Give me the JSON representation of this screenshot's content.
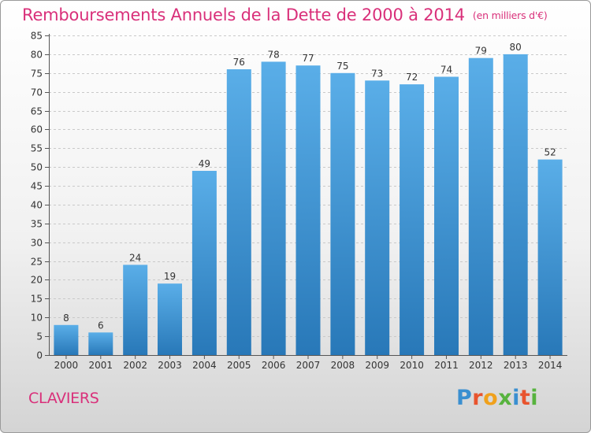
{
  "header": {
    "title": "Remboursements Annuels de la Dette de 2000 à 2014",
    "unit": "(en milliers d'€)"
  },
  "footer": {
    "city": "CLAVIERS",
    "logo_text": "Proxiti"
  },
  "colors": {
    "accent": "#d9307a",
    "bar_light": "#5aaee8",
    "bar_dark": "#2878b8",
    "logo_letters": [
      "#3a8fd0",
      "#e8542e",
      "#f0a11c",
      "#57b33e",
      "#3a8fd0",
      "#e8542e",
      "#57b33e"
    ]
  },
  "chart_data": {
    "type": "bar",
    "categories": [
      "2000",
      "2001",
      "2002",
      "2003",
      "2004",
      "2005",
      "2006",
      "2007",
      "2008",
      "2009",
      "2010",
      "2011",
      "2012",
      "2013",
      "2014"
    ],
    "values": [
      8,
      6,
      24,
      19,
      49,
      76,
      78,
      77,
      75,
      73,
      72,
      74,
      79,
      80,
      52
    ],
    "title": "Remboursements Annuels de la Dette de 2000 à 2014",
    "ylim": [
      0,
      85
    ],
    "yticks": [
      0,
      5,
      10,
      15,
      20,
      25,
      30,
      35,
      40,
      45,
      50,
      55,
      60,
      65,
      70,
      75,
      80,
      85
    ],
    "grid": true,
    "data_labels": true
  }
}
